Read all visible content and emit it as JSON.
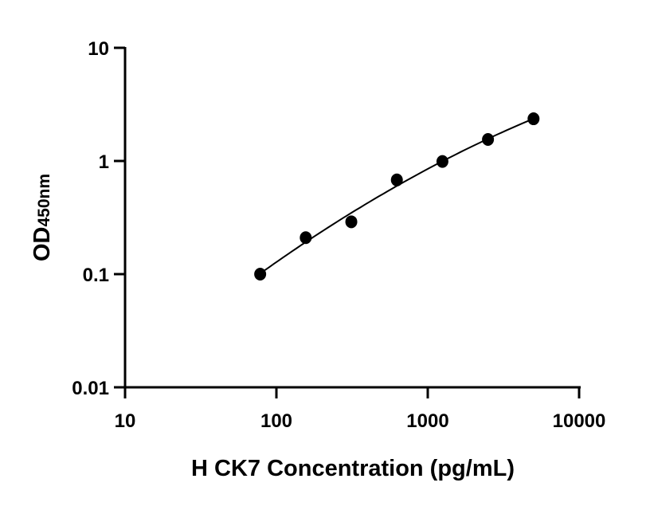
{
  "chart_data": {
    "type": "scatter",
    "title": "",
    "xlabel": "H CK7 Concentration (pg/mL)",
    "ylabel": "OD",
    "ylabel_subscript": "450nm",
    "x_scale": "log",
    "y_scale": "log",
    "xlim": [
      10,
      10000
    ],
    "ylim": [
      0.01,
      10
    ],
    "x_ticks": [
      10,
      100,
      1000,
      10000
    ],
    "x_tick_labels": [
      "10",
      "100",
      "1000",
      "10000"
    ],
    "y_ticks": [
      0.01,
      0.1,
      1,
      10
    ],
    "y_tick_labels": [
      "0.01",
      "0.1",
      "1",
      "10"
    ],
    "grid": false,
    "fit_curve": true,
    "marker_color": "#000000",
    "line_color": "#000000",
    "series": [
      {
        "x": [
          78.125,
          156.25,
          312.5,
          625,
          1250,
          2500,
          5000
        ],
        "y": [
          0.1,
          0.21,
          0.29,
          0.68,
          0.99,
          1.55,
          2.36
        ]
      }
    ]
  }
}
